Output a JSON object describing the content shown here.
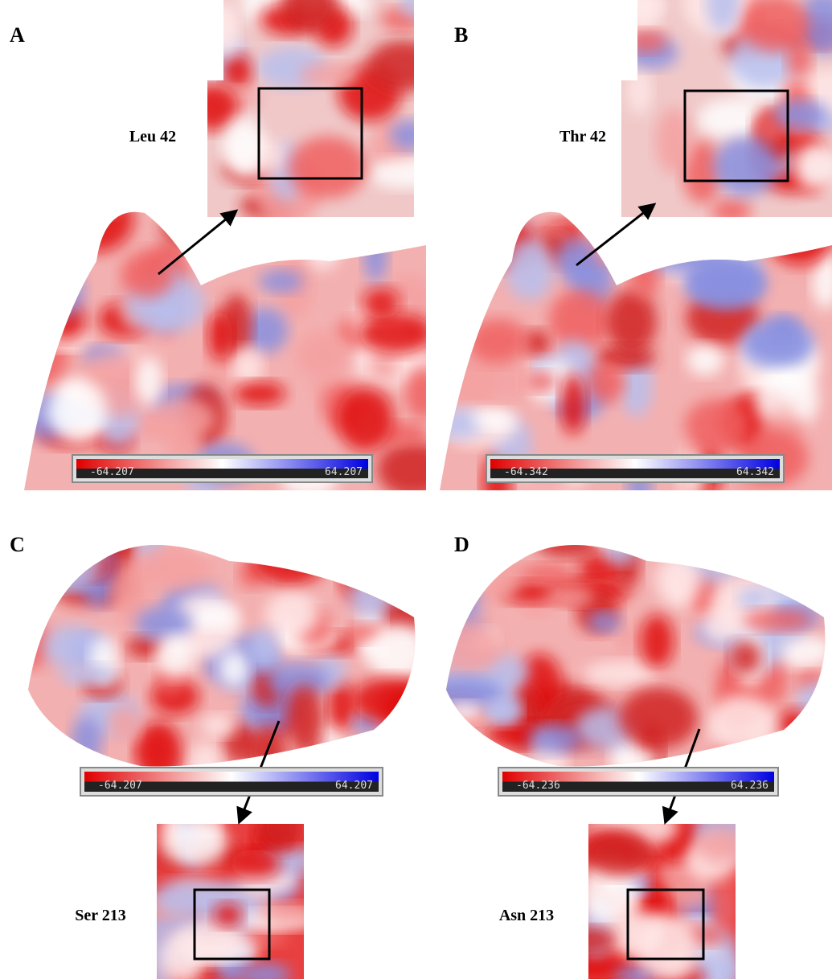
{
  "panels": [
    {
      "label": "A",
      "residue": "Leu 42",
      "scale": {
        "min": "-64.207",
        "max": "64.207"
      }
    },
    {
      "label": "B",
      "residue": "Thr 42",
      "scale": {
        "min": "-64.342",
        "max": "64.342"
      }
    },
    {
      "label": "C",
      "residue": "Ser 213",
      "scale": {
        "min": "-64.207",
        "max": "64.207"
      }
    },
    {
      "label": "D",
      "residue": "Asn 213",
      "scale": {
        "min": "-64.236",
        "max": "64.236"
      }
    }
  ]
}
